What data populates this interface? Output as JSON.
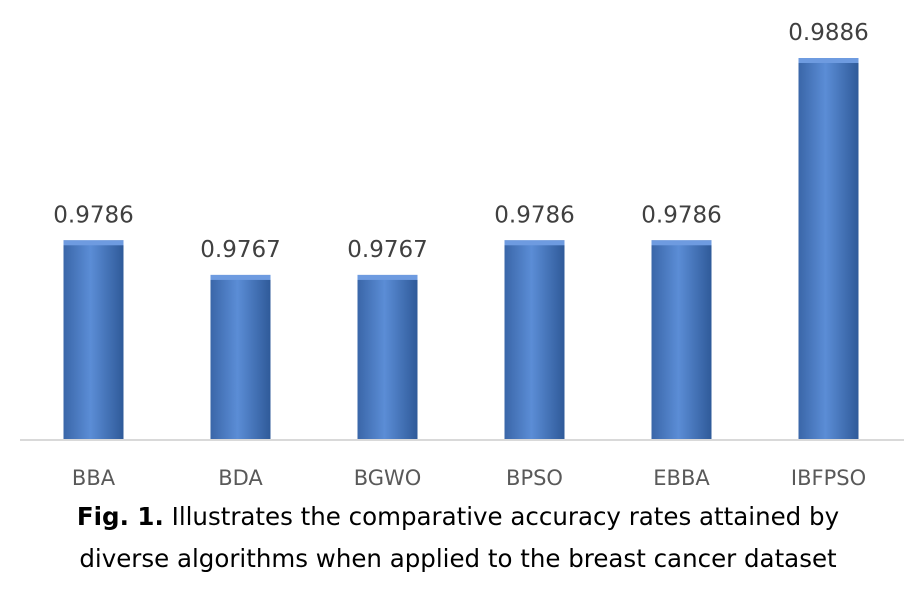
{
  "chart_data": {
    "type": "bar",
    "categories": [
      "BBA",
      "BDA",
      "BGWO",
      "BPSO",
      "EBBA",
      "IBFPSO"
    ],
    "values": [
      0.9786,
      0.9767,
      0.9767,
      0.9786,
      0.9786,
      0.9886
    ],
    "value_labels": [
      "0.9786",
      "0.9767",
      "0.9767",
      "0.9786",
      "0.9786",
      "0.9886"
    ],
    "title": "",
    "xlabel": "",
    "ylabel": "",
    "ylim": [
      0.9677,
      0.9886
    ],
    "grid": false,
    "legend": "none",
    "bar_color": "#4F81BD"
  },
  "caption": {
    "label": "Fig. 1.",
    "line1": "Illustrates the comparative accuracy rates attained by",
    "line2": "diverse algorithms when applied to the breast cancer dataset"
  }
}
